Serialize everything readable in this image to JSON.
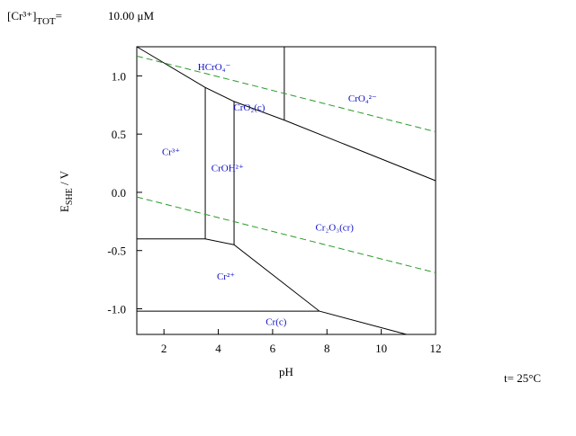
{
  "chart_data": {
    "type": "pourbaix",
    "concentration": {
      "species": "[Cr³⁺]",
      "subscript": "TOT",
      "sign": "=",
      "value": "10.00 μM"
    },
    "xlabel": "pH",
    "ylabel": {
      "main": "E",
      "subscript": "SHE",
      "unit": " / V"
    },
    "temperature": "t= 25°C",
    "xlim": [
      1,
      12
    ],
    "ylim": [
      -1.22,
      1.25
    ],
    "xticks": [
      2,
      4,
      6,
      8,
      10,
      12
    ],
    "yticks": [
      {
        "value": -1.0,
        "label": "-1.0"
      },
      {
        "value": -0.5,
        "label": "-0.5"
      },
      {
        "value": 0,
        "label": "0.0"
      },
      {
        "value": 0.5,
        "label": "0.5"
      },
      {
        "value": 1.0,
        "label": "1.0"
      }
    ],
    "boundaries": [
      {
        "color": "#000000",
        "x": [
          1,
          3.52,
          4.58,
          6.43,
          12
        ],
        "values": [
          1.25,
          0.9,
          0.78,
          0.62,
          0.1
        ]
      },
      {
        "color": "#000000",
        "x": [
          6.43,
          6.43
        ],
        "values": [
          1.25,
          0.62
        ]
      },
      {
        "color": "#000000",
        "x": [
          3.52,
          3.52
        ],
        "values": [
          0.9,
          -0.4
        ]
      },
      {
        "color": "#000000",
        "x": [
          4.58,
          4.58
        ],
        "values": [
          0.78,
          -0.45
        ]
      },
      {
        "color": "#000000",
        "x": [
          1,
          3.52,
          4.58,
          7.72,
          10.93
        ],
        "values": [
          -0.4,
          -0.4,
          -0.45,
          -1.02,
          -1.22
        ]
      },
      {
        "color": "#000000",
        "x": [
          1,
          7.72
        ],
        "values": [
          -1.02,
          -1.02
        ]
      },
      {
        "color": "#2a9a2a",
        "dashed": true,
        "x": [
          1,
          12
        ],
        "values": [
          1.17,
          0.52
        ]
      },
      {
        "color": "#2a9a2a",
        "dashed": true,
        "x": [
          1,
          12
        ],
        "values": [
          -0.04,
          -0.69
        ]
      }
    ],
    "species": [
      {
        "label": "HCrO₄⁻",
        "x": 3.85,
        "y": 1.07
      },
      {
        "label": "CrO₄²⁻",
        "x": 9.31,
        "y": 0.8
      },
      {
        "label": "CrO₂(c)",
        "x": 5.14,
        "y": 0.72
      },
      {
        "label": "Cr³⁺",
        "x": 2.26,
        "y": 0.34
      },
      {
        "label": "CrOH²⁺",
        "x": 4.34,
        "y": 0.2
      },
      {
        "label": "Cr₂O₃(cr)",
        "x": 8.28,
        "y": -0.31
      },
      {
        "label": "Cr²⁺",
        "x": 4.28,
        "y": -0.73
      },
      {
        "label": "Cr(c)",
        "x": 6.13,
        "y": -1.12
      }
    ]
  }
}
